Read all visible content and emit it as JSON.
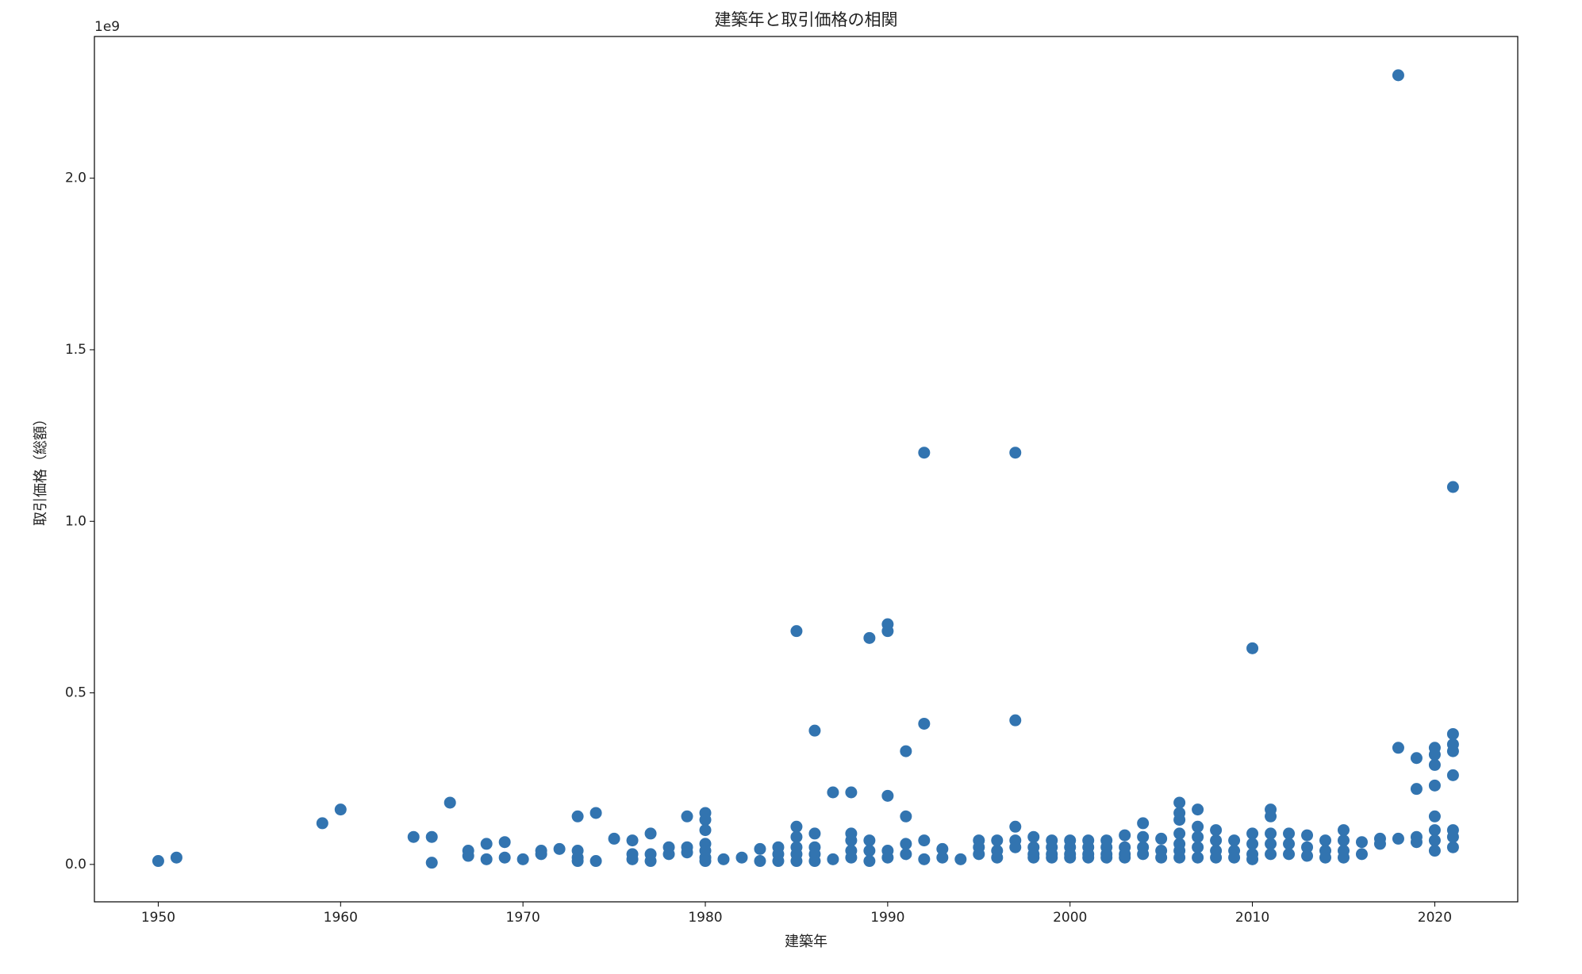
{
  "chart_data": {
    "type": "scatter",
    "title": "建築年と取引価格の相関",
    "xlabel": "建築年",
    "ylabel": "取引価格（総額）",
    "y_offset_label": "1e9",
    "color": "#3274b0",
    "xlim": [
      1946.5,
      2024.55
    ],
    "xticks": [
      1950,
      1960,
      1970,
      1980,
      1990,
      2000,
      2010,
      2020
    ],
    "ylim": [
      -0.109,
      2.413
    ],
    "yticks": [
      {
        "value": 0,
        "label": "0.0"
      },
      0.5,
      {
        "value": 1,
        "label": "1.0"
      },
      1.5,
      {
        "value": 2,
        "label": "2.0"
      }
    ],
    "grid": false,
    "x": [
      1950,
      1951,
      1959,
      1960,
      1964,
      1965,
      1965,
      1966,
      1967,
      1967,
      1968,
      1968,
      1969,
      1969,
      1970,
      1971,
      1971,
      1972,
      1973,
      1973,
      1973,
      1973,
      1974,
      1974,
      1975,
      1976,
      1976,
      1976,
      1977,
      1977,
      1977,
      1978,
      1978,
      1979,
      1979,
      1979,
      1980,
      1980,
      1980,
      1980,
      1980,
      1980,
      1980,
      1981,
      1982,
      1983,
      1983,
      1984,
      1984,
      1984,
      1985,
      1985,
      1985,
      1985,
      1985,
      1985,
      1986,
      1986,
      1986,
      1986,
      1986,
      1987,
      1987,
      1988,
      1988,
      1988,
      1988,
      1988,
      1989,
      1989,
      1989,
      1989,
      1990,
      1990,
      1990,
      1990,
      1990,
      1991,
      1991,
      1991,
      1991,
      1992,
      1992,
      1992,
      1992,
      1993,
      1993,
      1994,
      1995,
      1995,
      1995,
      1996,
      1996,
      1996,
      1997,
      1997,
      1997,
      1997,
      1997,
      1998,
      1998,
      1998,
      1998,
      1999,
      1999,
      1999,
      1999,
      2000,
      2000,
      2000,
      2000,
      2001,
      2001,
      2001,
      2001,
      2002,
      2002,
      2002,
      2002,
      2003,
      2003,
      2003,
      2003,
      2004,
      2004,
      2004,
      2004,
      2005,
      2005,
      2005,
      2006,
      2006,
      2006,
      2006,
      2006,
      2006,
      2006,
      2007,
      2007,
      2007,
      2007,
      2007,
      2008,
      2008,
      2008,
      2008,
      2009,
      2009,
      2009,
      2010,
      2010,
      2010,
      2010,
      2010,
      2011,
      2011,
      2011,
      2011,
      2011,
      2012,
      2012,
      2012,
      2013,
      2013,
      2013,
      2014,
      2014,
      2014,
      2015,
      2015,
      2015,
      2015,
      2016,
      2016,
      2017,
      2017,
      2018,
      2018,
      2018,
      2019,
      2019,
      2019,
      2019,
      2020,
      2020,
      2020,
      2020,
      2020,
      2020,
      2020,
      2020,
      2021,
      2021,
      2021,
      2021,
      2021,
      2021,
      2021,
      2021
    ],
    "values": [
      0.01,
      0.02,
      0.12,
      0.16,
      0.08,
      0.08,
      0.005,
      0.18,
      0.04,
      0.025,
      0.06,
      0.015,
      0.065,
      0.02,
      0.015,
      0.04,
      0.03,
      0.045,
      0.14,
      0.04,
      0.02,
      0.01,
      0.15,
      0.01,
      0.075,
      0.07,
      0.03,
      0.015,
      0.09,
      0.03,
      0.01,
      0.05,
      0.03,
      0.14,
      0.05,
      0.035,
      0.15,
      0.13,
      0.1,
      0.06,
      0.04,
      0.02,
      0.01,
      0.015,
      0.02,
      0.045,
      0.01,
      0.05,
      0.03,
      0.01,
      0.68,
      0.11,
      0.08,
      0.05,
      0.03,
      0.01,
      0.39,
      0.09,
      0.05,
      0.03,
      0.01,
      0.21,
      0.015,
      0.21,
      0.09,
      0.07,
      0.04,
      0.02,
      0.66,
      0.07,
      0.04,
      0.01,
      0.7,
      0.68,
      0.2,
      0.04,
      0.02,
      0.33,
      0.14,
      0.06,
      0.03,
      1.2,
      0.41,
      0.07,
      0.015,
      0.045,
      0.02,
      0.015,
      0.07,
      0.05,
      0.03,
      0.07,
      0.04,
      0.02,
      1.2,
      0.42,
      0.11,
      0.07,
      0.05,
      0.08,
      0.05,
      0.03,
      0.02,
      0.07,
      0.05,
      0.03,
      0.02,
      0.07,
      0.05,
      0.03,
      0.02,
      0.07,
      0.05,
      0.03,
      0.02,
      0.07,
      0.05,
      0.03,
      0.02,
      0.085,
      0.05,
      0.03,
      0.02,
      0.12,
      0.08,
      0.05,
      0.03,
      0.075,
      0.04,
      0.02,
      0.18,
      0.15,
      0.13,
      0.09,
      0.06,
      0.04,
      0.02,
      0.16,
      0.11,
      0.08,
      0.05,
      0.02,
      0.1,
      0.07,
      0.04,
      0.02,
      0.07,
      0.04,
      0.02,
      0.63,
      0.09,
      0.06,
      0.03,
      0.015,
      0.16,
      0.14,
      0.09,
      0.06,
      0.03,
      0.09,
      0.06,
      0.03,
      0.085,
      0.05,
      0.025,
      0.07,
      0.04,
      0.02,
      0.1,
      0.07,
      0.04,
      0.02,
      0.065,
      0.03,
      0.075,
      0.06,
      2.3,
      0.34,
      0.075,
      0.31,
      0.22,
      0.08,
      0.065,
      0.34,
      0.32,
      0.29,
      0.23,
      0.14,
      0.1,
      0.07,
      0.04,
      1.1,
      0.38,
      0.35,
      0.33,
      0.26,
      0.1,
      0.08,
      0.05
    ]
  }
}
